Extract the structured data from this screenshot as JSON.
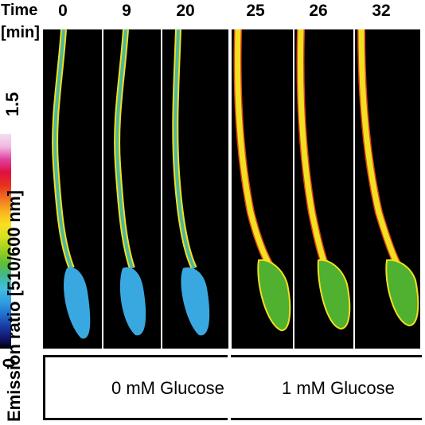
{
  "labels": {
    "time": "Time",
    "min": "[min]",
    "y_axis": "Emission ratio [510/600 nm]",
    "scale_max": "1.5",
    "scale_min": "0"
  },
  "time_points": [
    "0",
    "9",
    "20",
    "25",
    "26",
    "32"
  ],
  "conditions": [
    "0 mM Glucose",
    "1 mM Glucose"
  ],
  "colors": {
    "low_glucose_tip": "#3aa8e0",
    "high_glucose_tip": "#50b030",
    "tube_yellow": "#f0e020",
    "tube_green": "#60c040"
  }
}
